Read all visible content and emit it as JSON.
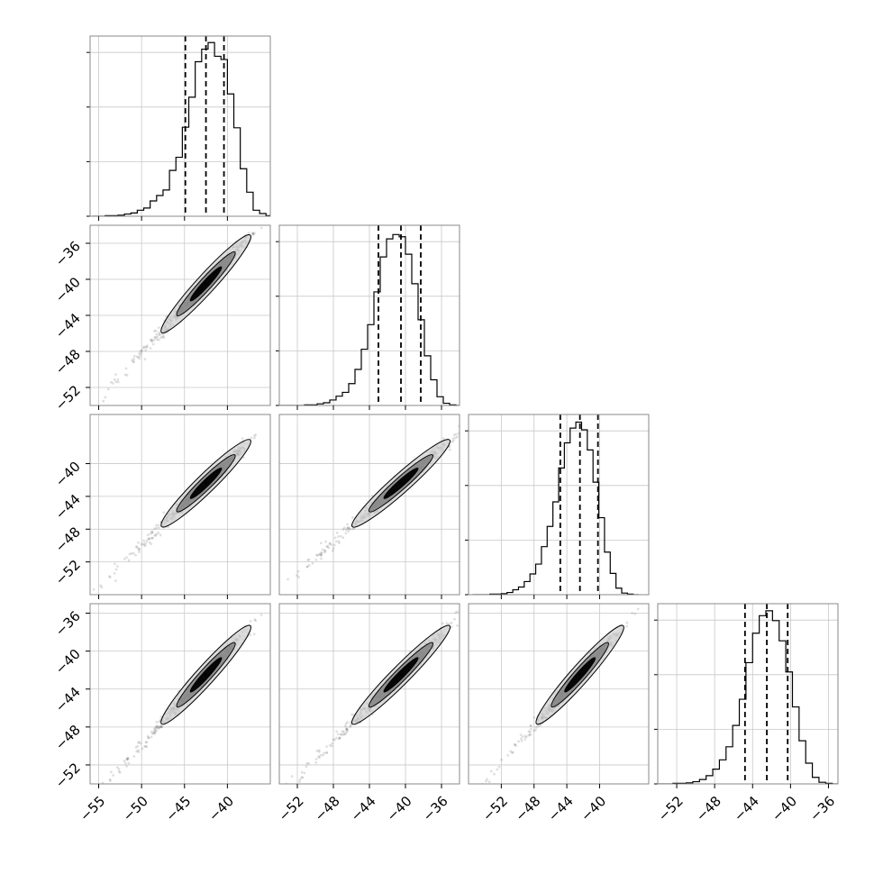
{
  "chart_data": {
    "type": "corner",
    "title": "",
    "ndim": 4,
    "grid": true,
    "quantile_style": "dashed",
    "dimensions": [
      {
        "range": [
          -56.0,
          -35.0
        ],
        "ticks": [
          -55,
          -50,
          -45,
          -40
        ],
        "tick_labels": [
          "−55",
          "−50",
          "−45",
          "−40"
        ],
        "quantiles": [
          -44.9,
          -42.5,
          -40.4
        ],
        "hist_bins": [
          -55.75,
          -55.0,
          -54.25,
          -53.5,
          -52.75,
          -52.0,
          -51.25,
          -50.5,
          -49.75,
          -49.0,
          -48.25,
          -47.5,
          -46.75,
          -46.0,
          -45.25,
          -44.5,
          -43.75,
          -43.0,
          -42.25,
          -41.5,
          -40.75,
          -40.0,
          -39.25,
          -38.5,
          -37.75,
          -37.0,
          -36.25,
          -35.5,
          -34.75
        ],
        "hist_counts": [
          0,
          0,
          1,
          1,
          2,
          4,
          6,
          11,
          15,
          28,
          38,
          48,
          84,
          108,
          163,
          218,
          283,
          306,
          318,
          293,
          287,
          224,
          162,
          87,
          44,
          11,
          5,
          1
        ],
        "hist_max": 330
      },
      {
        "range": [
          -54.0,
          -34.0
        ],
        "ticks": [
          -52,
          -48,
          -44,
          -40,
          -36
        ],
        "tick_labels": [
          "−52",
          "−48",
          "−44",
          "−40",
          "−36"
        ],
        "quantiles": [
          -43.0,
          -40.5,
          -38.3
        ],
        "hist_bins": [
          -54.0,
          -53.3,
          -52.6,
          -51.9,
          -51.2,
          -50.5,
          -49.8,
          -49.1,
          -48.4,
          -47.7,
          -47.0,
          -46.3,
          -45.6,
          -44.9,
          -44.2,
          -43.5,
          -42.8,
          -42.1,
          -41.4,
          -40.7,
          -40.0,
          -39.3,
          -38.6,
          -37.9,
          -37.2,
          -36.5,
          -35.8,
          -35.1,
          -34.4,
          -34.0
        ],
        "hist_counts": [
          0,
          0,
          0,
          0,
          1,
          1,
          3,
          5,
          10,
          17,
          24,
          40,
          66,
          103,
          148,
          208,
          272,
          305,
          313,
          309,
          277,
          223,
          157,
          91,
          47,
          16,
          4,
          1,
          0
        ],
        "hist_max": 330
      },
      {
        "range": [
          -56.0,
          -34.0
        ],
        "ticks": [
          -52,
          -48,
          -44,
          -40
        ],
        "tick_labels": [
          "−52",
          "−48",
          "−44",
          "−40"
        ],
        "quantiles": [
          -44.8,
          -42.4,
          -40.2
        ],
        "hist_bins": [
          -55.5,
          -54.8,
          -54.1,
          -53.4,
          -52.7,
          -52.0,
          -51.3,
          -50.6,
          -49.9,
          -49.2,
          -48.5,
          -47.8,
          -47.1,
          -46.4,
          -45.7,
          -45.0,
          -44.3,
          -43.6,
          -42.9,
          -42.2,
          -41.5,
          -40.8,
          -40.1,
          -39.4,
          -38.7,
          -38.0,
          -37.3,
          -36.6,
          -35.9,
          -35.2
        ],
        "hist_counts": [
          0,
          0,
          0,
          1,
          1,
          2,
          4,
          9,
          14,
          24,
          38,
          56,
          88,
          125,
          170,
          232,
          278,
          305,
          316,
          302,
          265,
          206,
          141,
          78,
          39,
          12,
          3,
          1,
          0
        ],
        "hist_max": 330
      },
      {
        "range": [
          -54.0,
          -35.0
        ],
        "ticks": [
          -52,
          -48,
          -44,
          -40,
          -36
        ],
        "tick_labels": [
          "−52",
          "−48",
          "−44",
          "−40",
          "−36"
        ],
        "quantiles": [
          -44.8,
          -42.5,
          -40.3
        ],
        "hist_bins": [
          -54.5,
          -53.8,
          -53.1,
          -52.4,
          -51.7,
          -51.0,
          -50.3,
          -49.6,
          -48.9,
          -48.2,
          -47.5,
          -46.8,
          -46.1,
          -45.4,
          -44.7,
          -44.0,
          -43.3,
          -42.6,
          -41.9,
          -41.2,
          -40.5,
          -39.8,
          -39.1,
          -38.4,
          -37.7,
          -37.0,
          -36.3,
          -35.6,
          -34.9
        ],
        "hist_counts": [
          0,
          0,
          0,
          1,
          1,
          2,
          4,
          8,
          15,
          27,
          44,
          68,
          107,
          155,
          222,
          276,
          308,
          317,
          299,
          262,
          205,
          141,
          79,
          38,
          12,
          3,
          1,
          0
        ],
        "hist_max": 330
      }
    ],
    "pair_plots": [
      {
        "x_dim": 0,
        "y_dim": 1,
        "y_ticks": [
          -36,
          -40,
          -44,
          -48,
          -52
        ],
        "y_tick_labels": [
          "−36",
          "−40",
          "−44",
          "−48",
          "−52"
        ]
      },
      {
        "x_dim": 0,
        "y_dim": 2,
        "y_ticks": [
          -40,
          -44,
          -48,
          -52
        ],
        "y_tick_labels": [
          "−40",
          "−44",
          "−48",
          "−52"
        ]
      },
      {
        "x_dim": 1,
        "y_dim": 2
      },
      {
        "x_dim": 0,
        "y_dim": 3,
        "y_ticks": [
          -36,
          -40,
          -44,
          -48,
          -52
        ],
        "y_tick_labels": [
          "−36",
          "−40",
          "−44",
          "−48",
          "−52"
        ]
      },
      {
        "x_dim": 1,
        "y_dim": 3
      },
      {
        "x_dim": 2,
        "y_dim": 3
      }
    ],
    "colors": {
      "line": "#000000",
      "scatter": "#555555",
      "contour_inner": "#000000",
      "contour_mid": "#7f7f7f",
      "contour_outer": "#cfcfcf",
      "grid": "#c8c8c8",
      "frame": "#888888"
    }
  }
}
